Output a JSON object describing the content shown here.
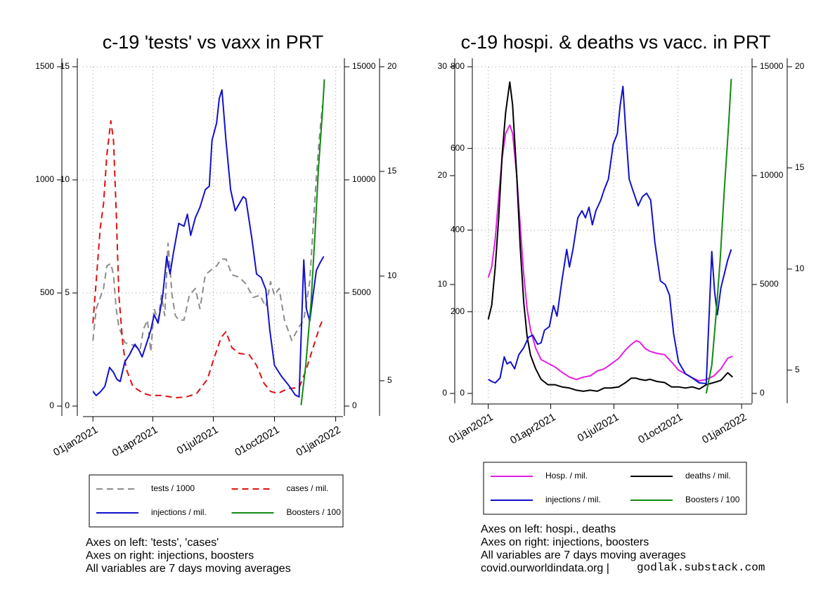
{
  "chart_data": [
    {
      "type": "line",
      "title": "c-19 'tests' vs vaxx in PRT",
      "xlim": [
        "2020-12-17",
        "2022-01-12"
      ],
      "xticks": [
        {
          "value": "2021-01-01",
          "label": "01jan2021"
        },
        {
          "value": "2021-04-01",
          "label": "01apr2021"
        },
        {
          "value": "2021-07-01",
          "label": "01jul2021"
        },
        {
          "value": "2021-10-01",
          "label": "01oct2021"
        },
        {
          "value": "2022-01-01",
          "label": "01jan2022"
        }
      ],
      "ylim": [
        0,
        1500
      ],
      "yticks": [
        0,
        500,
        1000,
        1500
      ],
      "y2lim": [
        0,
        15
      ],
      "y2ticks": [
        0,
        5,
        10,
        15
      ],
      "y3lim": [
        0,
        15000
      ],
      "y3ticks": [
        0,
        5000,
        10000,
        15000
      ],
      "y4lim": [
        3.79,
        20
      ],
      "y4ticks": [
        5,
        10,
        15,
        20
      ],
      "grid": "y",
      "series": [
        {
          "name": "tests / 1000",
          "color": "#8c8c8c",
          "dash": "dashed",
          "axis": "y2",
          "x": [
            "2021-01-01",
            "2021-01-06",
            "2021-01-12",
            "2021-01-17",
            "2021-01-22",
            "2021-01-28",
            "2021-02-01",
            "2021-02-05",
            "2021-02-09",
            "2021-02-18",
            "2021-03-02",
            "2021-03-13",
            "2021-03-18",
            "2021-03-24",
            "2021-03-29",
            "2021-04-03",
            "2021-04-09",
            "2021-04-14",
            "2021-04-19",
            "2021-04-24",
            "2021-04-30",
            "2021-05-05",
            "2021-05-10",
            "2021-05-18",
            "2021-05-26",
            "2021-06-04",
            "2021-06-11",
            "2021-06-19",
            "2021-06-27",
            "2021-07-06",
            "2021-07-13",
            "2021-07-20",
            "2021-07-29",
            "2021-08-09",
            "2021-08-19",
            "2021-08-30",
            "2021-09-09",
            "2021-09-18",
            "2021-09-25",
            "2021-10-01",
            "2021-10-08",
            "2021-10-16",
            "2021-10-27",
            "2021-11-07",
            "2021-11-14",
            "2021-11-23",
            "2021-12-01",
            "2021-12-07",
            "2021-12-12"
          ],
          "values": [
            2.9,
            4.3,
            4.8,
            5.2,
            6.2,
            6.3,
            5.8,
            4.3,
            3.5,
            2.8,
            2.7,
            2.5,
            3.4,
            3.8,
            2.4,
            4.3,
            3.8,
            4.9,
            4.0,
            7.2,
            4.9,
            4.0,
            3.8,
            3.8,
            4.9,
            5.2,
            4.3,
            5.8,
            6.0,
            6.2,
            6.5,
            6.5,
            5.8,
            5.7,
            5.4,
            4.8,
            4.9,
            4.4,
            5.5,
            4.9,
            5.2,
            3.8,
            2.9,
            3.5,
            3.8,
            5.5,
            9.3,
            11.7,
            13.3
          ]
        },
        {
          "name": "cases / mil.",
          "color": "#dd1111",
          "dash": "dashed",
          "axis": "y",
          "x": [
            "2021-01-01",
            "2021-01-06",
            "2021-01-12",
            "2021-01-17",
            "2021-01-22",
            "2021-01-28",
            "2021-02-01",
            "2021-02-05",
            "2021-02-09",
            "2021-02-15",
            "2021-02-20",
            "2021-03-02",
            "2021-03-18",
            "2021-03-29",
            "2021-04-14",
            "2021-05-05",
            "2021-05-21",
            "2021-06-06",
            "2021-06-22",
            "2021-07-02",
            "2021-07-13",
            "2021-07-20",
            "2021-07-29",
            "2021-08-09",
            "2021-08-24",
            "2021-09-04",
            "2021-09-15",
            "2021-09-25",
            "2021-10-06",
            "2021-10-22",
            "2021-11-07",
            "2021-11-17",
            "2021-11-28",
            "2021-12-08",
            "2021-12-14"
          ],
          "values": [
            366,
            553,
            786,
            894,
            1112,
            1261,
            1174,
            863,
            491,
            273,
            165,
            87,
            56,
            47,
            47,
            37,
            40,
            56,
            118,
            211,
            304,
            329,
            258,
            233,
            227,
            180,
            102,
            65,
            56,
            78,
            81,
            155,
            258,
            351,
            391
          ]
        },
        {
          "name": "injections / mil.",
          "color": "#1111cc",
          "axis": "y3",
          "x": [
            "2021-01-01",
            "2021-01-06",
            "2021-01-12",
            "2021-01-19",
            "2021-01-26",
            "2021-02-01",
            "2021-02-06",
            "2021-02-11",
            "2021-02-18",
            "2021-02-25",
            "2021-03-05",
            "2021-03-11",
            "2021-03-16",
            "2021-03-24",
            "2021-03-29",
            "2021-04-03",
            "2021-04-09",
            "2021-04-16",
            "2021-04-22",
            "2021-04-27",
            "2021-05-02",
            "2021-05-10",
            "2021-05-18",
            "2021-05-23",
            "2021-05-28",
            "2021-06-04",
            "2021-06-11",
            "2021-06-19",
            "2021-06-25",
            "2021-06-29",
            "2021-07-06",
            "2021-07-10",
            "2021-07-14",
            "2021-07-20",
            "2021-07-27",
            "2021-08-03",
            "2021-08-09",
            "2021-08-15",
            "2021-08-19",
            "2021-08-28",
            "2021-09-04",
            "2021-09-11",
            "2021-09-18",
            "2021-09-24",
            "2021-10-01",
            "2021-10-11",
            "2021-10-22",
            "2021-11-01",
            "2021-11-07",
            "2021-11-14",
            "2021-11-18",
            "2021-11-23",
            "2021-11-28",
            "2021-12-03",
            "2021-12-08",
            "2021-12-14"
          ],
          "values": [
            652,
            466,
            621,
            870,
            1708,
            1491,
            1180,
            1087,
            1957,
            2267,
            2733,
            2485,
            2174,
            2889,
            3354,
            4038,
            3665,
            4907,
            6616,
            5839,
            6771,
            8076,
            7951,
            8479,
            7548,
            8324,
            8790,
            9566,
            9721,
            11741,
            12517,
            13604,
            13977,
            11741,
            9566,
            8635,
            8945,
            9256,
            9163,
            7392,
            5839,
            5684,
            5156,
            3354,
            1801,
            1335,
            932,
            497,
            404,
            6461,
            4286,
            3758,
            4907,
            5995,
            6306,
            6616
          ]
        },
        {
          "name": "Boosters / 100",
          "color": "#128a12",
          "axis": "y4",
          "x": [
            "2021-11-10",
            "2021-11-17",
            "2021-11-25",
            "2021-12-01",
            "2021-12-06",
            "2021-12-12",
            "2021-12-15"
          ],
          "values": [
            3.83,
            5.74,
            8.76,
            12.1,
            15.1,
            17.8,
            19.4
          ]
        }
      ],
      "notes": [
        "Axes on left: 'tests', 'cases'",
        "Axes on right: injections, boosters",
        "All variables are 7 days moving averages"
      ]
    },
    {
      "type": "line",
      "title": "c-19 hospi. & deaths vs vacc. in PRT",
      "xlim": [
        "2020-12-07",
        "2022-01-16"
      ],
      "xticks": [
        {
          "value": "2021-01-01",
          "label": "01jan2021"
        },
        {
          "value": "2021-04-01",
          "label": "01apr2021"
        },
        {
          "value": "2021-07-01",
          "label": "01jul2021"
        },
        {
          "value": "2021-10-01",
          "label": "01oct2021"
        },
        {
          "value": "2022-01-01",
          "label": "01jan2022"
        }
      ],
      "ylim": [
        0,
        30
      ],
      "yticks": [
        0,
        10,
        20,
        30
      ],
      "y2lim": [
        0,
        800
      ],
      "y2ticks": [
        0,
        200,
        400,
        600,
        800
      ],
      "y3lim": [
        0,
        15000
      ],
      "y3ticks": [
        0,
        5000,
        10000,
        15000
      ],
      "y4lim": [
        3.85,
        20
      ],
      "y4ticks": [
        5,
        10,
        15,
        20
      ],
      "grid": "y2",
      "series": [
        {
          "name": "Hosp. / mil.",
          "color": "#e020e0",
          "axis": "y2",
          "x": [
            "2021-01-01",
            "2021-01-06",
            "2021-01-11",
            "2021-01-16",
            "2021-01-21",
            "2021-01-26",
            "2021-02-01",
            "2021-02-05",
            "2021-02-11",
            "2021-02-16",
            "2021-02-21",
            "2021-02-26",
            "2021-03-03",
            "2021-03-10",
            "2021-03-18",
            "2021-03-28",
            "2021-04-07",
            "2021-04-17",
            "2021-04-28",
            "2021-05-08",
            "2021-05-18",
            "2021-05-28",
            "2021-06-07",
            "2021-06-17",
            "2021-06-27",
            "2021-07-08",
            "2021-07-18",
            "2021-07-26",
            "2021-08-02",
            "2021-08-07",
            "2021-08-15",
            "2021-08-22",
            "2021-09-01",
            "2021-09-12",
            "2021-09-22",
            "2021-10-02",
            "2021-10-12",
            "2021-10-22",
            "2021-11-01",
            "2021-11-11",
            "2021-11-22",
            "2021-12-02",
            "2021-12-12",
            "2021-12-19"
          ],
          "values": [
            284,
            310,
            378,
            482,
            576,
            637,
            657,
            637,
            533,
            413,
            292,
            206,
            155,
            112,
            83,
            74,
            65,
            52,
            40,
            34,
            40,
            43,
            55,
            60,
            72,
            86,
            107,
            120,
            129,
            126,
            110,
            103,
            98,
            95,
            77,
            57,
            48,
            38,
            31,
            34,
            43,
            60,
            86,
            91
          ]
        },
        {
          "name": "deaths / mil.",
          "color": "#000000",
          "axis": "y",
          "x": [
            "2021-01-01",
            "2021-01-06",
            "2021-01-11",
            "2021-01-16",
            "2021-01-21",
            "2021-01-26",
            "2021-02-01",
            "2021-02-05",
            "2021-02-11",
            "2021-02-16",
            "2021-02-21",
            "2021-02-26",
            "2021-03-03",
            "2021-03-10",
            "2021-03-18",
            "2021-03-28",
            "2021-04-07",
            "2021-04-17",
            "2021-04-28",
            "2021-05-08",
            "2021-05-18",
            "2021-05-28",
            "2021-06-07",
            "2021-06-17",
            "2021-06-27",
            "2021-07-08",
            "2021-07-18",
            "2021-07-26",
            "2021-08-02",
            "2021-08-07",
            "2021-08-15",
            "2021-08-22",
            "2021-09-01",
            "2021-09-12",
            "2021-09-22",
            "2021-10-02",
            "2021-10-12",
            "2021-10-22",
            "2021-11-01",
            "2021-11-11",
            "2021-11-22",
            "2021-12-02",
            "2021-12-12",
            "2021-12-19"
          ],
          "values": [
            6.8,
            8.1,
            11.6,
            16.1,
            21.9,
            25.8,
            28.6,
            26.5,
            20.0,
            13.5,
            8.4,
            5.2,
            3.5,
            2.3,
            1.3,
            0.8,
            0.8,
            0.6,
            0.5,
            0.3,
            0.2,
            0.3,
            0.2,
            0.5,
            0.5,
            0.6,
            1.0,
            1.4,
            1.4,
            1.3,
            1.2,
            1.3,
            1.1,
            1.0,
            0.6,
            0.6,
            0.5,
            0.6,
            0.4,
            0.8,
            1.0,
            1.2,
            1.9,
            1.5
          ]
        },
        {
          "name": "injections / mil.",
          "color": "#1111cc",
          "axis": "y3",
          "x": [
            "2021-01-01",
            "2021-01-06",
            "2021-01-11",
            "2021-01-18",
            "2021-01-24",
            "2021-01-28",
            "2021-02-02",
            "2021-02-08",
            "2021-02-14",
            "2021-02-21",
            "2021-02-28",
            "2021-03-06",
            "2021-03-13",
            "2021-03-18",
            "2021-03-23",
            "2021-03-30",
            "2021-04-05",
            "2021-04-10",
            "2021-04-17",
            "2021-04-24",
            "2021-04-28",
            "2021-05-03",
            "2021-05-10",
            "2021-05-16",
            "2021-05-21",
            "2021-05-26",
            "2021-05-31",
            "2021-06-05",
            "2021-06-12",
            "2021-06-17",
            "2021-06-23",
            "2021-06-30",
            "2021-07-06",
            "2021-07-10",
            "2021-07-14",
            "2021-07-18",
            "2021-07-23",
            "2021-07-28",
            "2021-08-05",
            "2021-08-11",
            "2021-08-17",
            "2021-08-23",
            "2021-08-29",
            "2021-09-06",
            "2021-09-13",
            "2021-09-19",
            "2021-09-25",
            "2021-10-02",
            "2021-10-12",
            "2021-10-22",
            "2021-11-01",
            "2021-11-11",
            "2021-11-19",
            "2021-11-23",
            "2021-11-27",
            "2021-12-02",
            "2021-12-07",
            "2021-12-12",
            "2021-12-17"
          ],
          "values": [
            645,
            548,
            484,
            710,
            1678,
            1355,
            1452,
            1129,
            1774,
            2097,
            2581,
            2678,
            2258,
            2323,
            2903,
            3065,
            4032,
            3549,
            5162,
            6613,
            5807,
            6613,
            8065,
            8388,
            8065,
            8549,
            7742,
            8388,
            8872,
            9355,
            9839,
            11452,
            11936,
            13226,
            14097,
            12097,
            9839,
            9355,
            8613,
            9032,
            9194,
            8872,
            6936,
            5162,
            5000,
            4516,
            2742,
            1452,
            903,
            710,
            484,
            452,
            6516,
            4677,
            3613,
            4839,
            5484,
            6129,
            6613
          ]
        },
        {
          "name": "Boosters / 100",
          "color": "#128a12",
          "axis": "y4",
          "x": [
            "2021-11-11",
            "2021-11-19",
            "2021-11-25",
            "2021-12-01",
            "2021-12-07",
            "2021-12-13",
            "2021-12-17"
          ],
          "values": [
            3.85,
            5.24,
            7.67,
            10.45,
            13.9,
            17.0,
            19.4
          ]
        }
      ],
      "notes": [
        "Axes on left: hospi., deaths",
        "Axes on right: injections, boosters",
        "All variables are 7 days moving averages",
        "covid.ourworldindata.org |"
      ]
    }
  ],
  "credit": "godlak.substack.com"
}
